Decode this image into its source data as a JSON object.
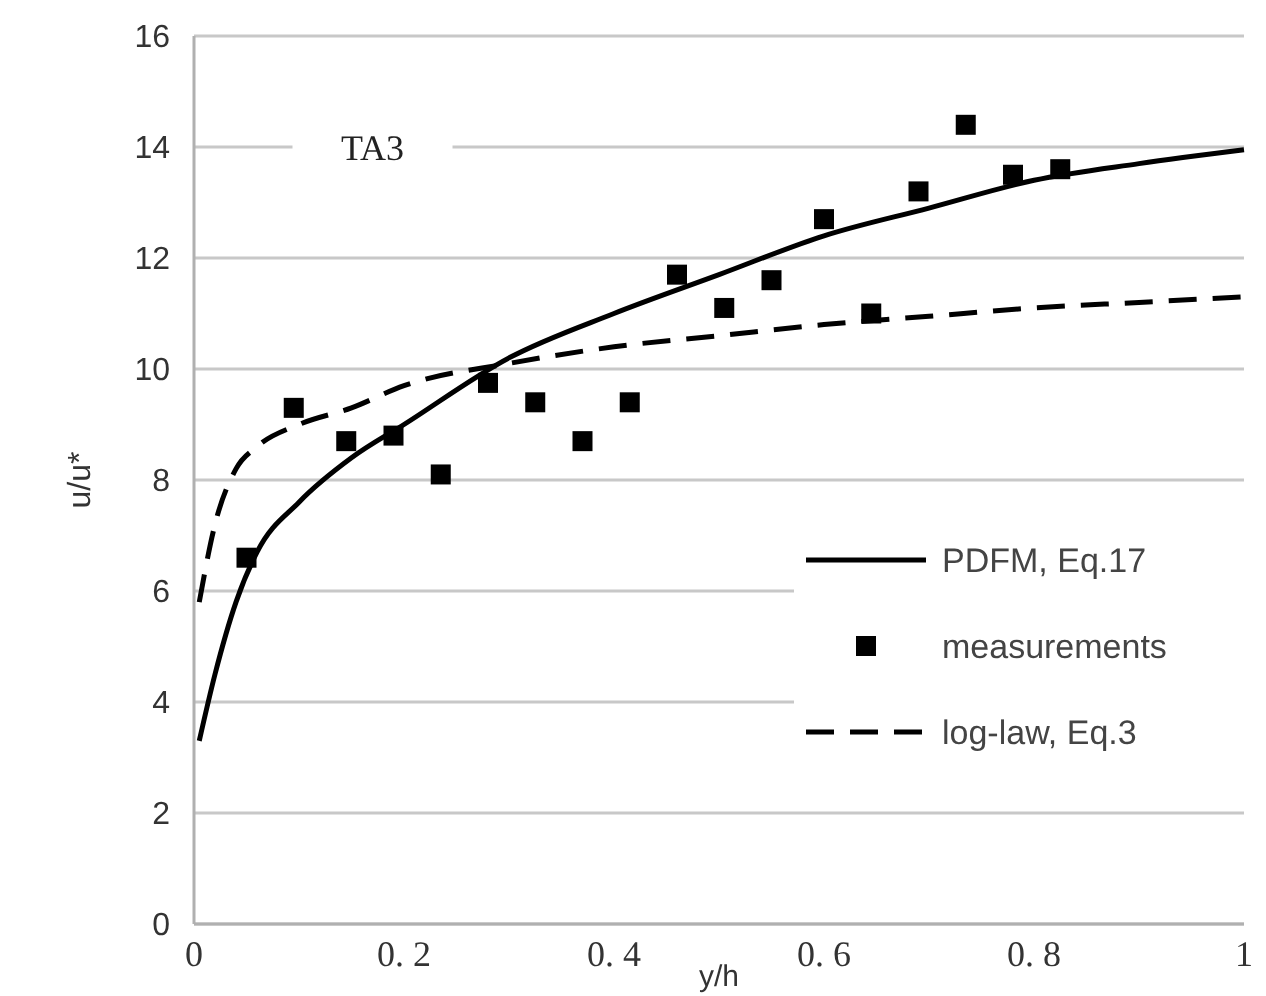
{
  "chart_data": {
    "type": "line",
    "xlabel": "y/h",
    "ylabel": "u/u*",
    "xlim": [
      0,
      1
    ],
    "ylim": [
      0,
      16
    ],
    "xticks": [
      0,
      {
        "value": 0.2,
        "label": "0. 2"
      },
      {
        "value": 0.4,
        "label": "0. 4"
      },
      {
        "value": 0.6,
        "label": "0. 6"
      },
      {
        "value": 0.8,
        "label": "0. 8"
      },
      1
    ],
    "yticks": [
      0,
      2,
      4,
      6,
      8,
      10,
      12,
      14,
      16
    ],
    "grid": "y",
    "legend": "bottom right",
    "annotations": [
      "TA3"
    ],
    "series": [
      {
        "name": "PDFM, Eq.17",
        "type": "line",
        "color": "#000000",
        "line_style": "solid",
        "marker": "none",
        "x": [
          0.005,
          0.02,
          0.04,
          0.06,
          0.1,
          0.15,
          0.2,
          0.3,
          0.4,
          0.5,
          0.6,
          0.7,
          0.8,
          0.9,
          1
        ],
        "values": [
          3.3,
          4.5,
          5.8,
          6.7,
          7.6,
          8.4,
          9.0,
          10.2,
          11.0,
          11.7,
          12.4,
          12.9,
          13.4,
          13.7,
          13.95
        ]
      },
      {
        "name": "measurements",
        "type": "scatter",
        "color": "#000000",
        "marker": "square",
        "x": [
          0.05,
          0.095,
          0.145,
          0.19,
          0.235,
          0.28,
          0.325,
          0.37,
          0.415,
          0.46,
          0.505,
          0.55,
          0.6,
          0.645,
          0.69,
          0.735,
          0.78,
          0.825
        ],
        "values": [
          6.6,
          9.3,
          8.7,
          8.8,
          8.1,
          9.75,
          9.4,
          8.7,
          9.4,
          11.7,
          11.1,
          11.6,
          12.7,
          11.0,
          13.2,
          14.4,
          13.5,
          13.6
        ]
      },
      {
        "name": "log-law, Eq.3",
        "type": "line",
        "color": "#000000",
        "line_style": "dashed",
        "marker": "none",
        "x": [
          0.005,
          0.02,
          0.04,
          0.06,
          0.1,
          0.15,
          0.2,
          0.3,
          0.4,
          0.5,
          0.6,
          0.7,
          0.8,
          0.9,
          1
        ],
        "values": [
          5.8,
          7.2,
          8.2,
          8.6,
          9.0,
          9.3,
          9.7,
          10.1,
          10.4,
          10.6,
          10.8,
          10.95,
          11.1,
          11.2,
          11.3
        ]
      }
    ]
  }
}
